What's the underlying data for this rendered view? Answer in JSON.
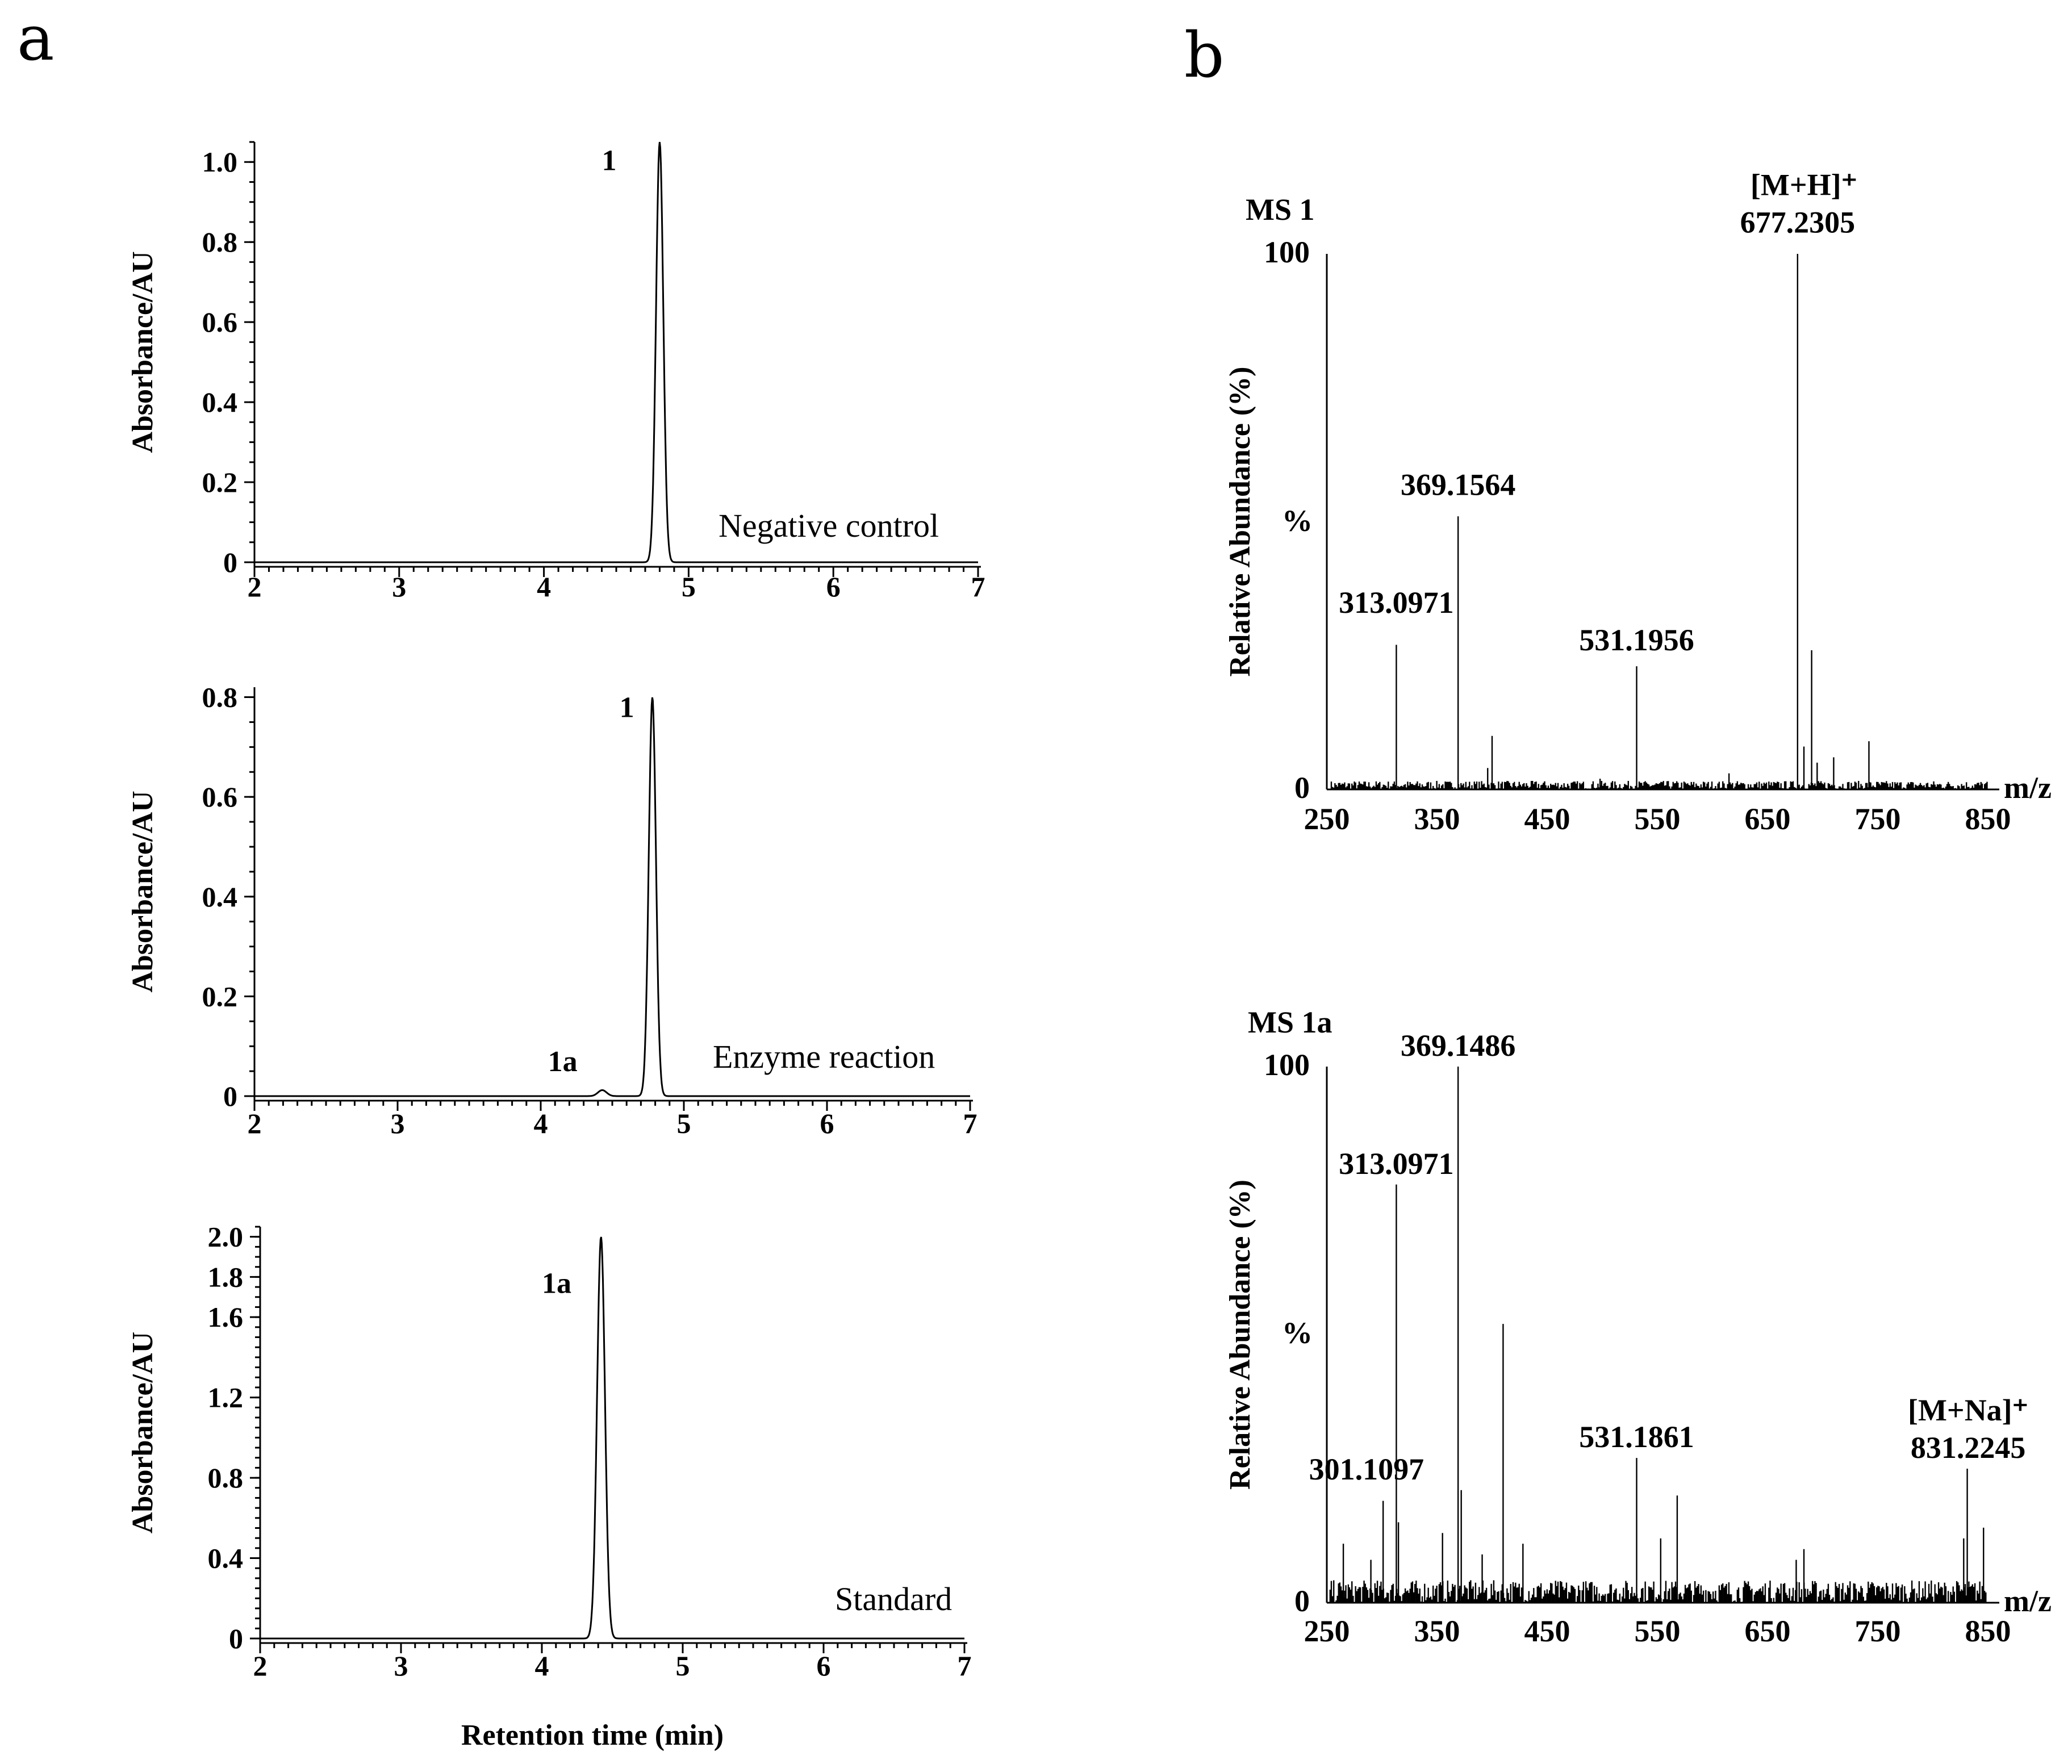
{
  "figure": {
    "panel_a": "a",
    "panel_b": "b"
  },
  "chart_data": [
    {
      "id": "hplc1",
      "type": "line",
      "ylabel": "Absorbance/AU",
      "xlabel": "",
      "condition": "Negative control",
      "xlim": [
        2,
        7
      ],
      "ylim": [
        0,
        1.05
      ],
      "xticks": [
        "2",
        "3",
        "4",
        "5",
        "6",
        "7"
      ],
      "yticks": [
        {
          "v": 0,
          "t": "0"
        },
        {
          "v": 0.2,
          "t": "0.2"
        },
        {
          "v": 0.4,
          "t": "0.4"
        },
        {
          "v": 0.6,
          "t": "0.6"
        },
        {
          "v": 0.8,
          "t": "0.8"
        },
        {
          "v": 1.0,
          "t": "1.0"
        }
      ],
      "peaks": [
        {
          "rt": 4.8,
          "h": 1.05,
          "w": 0.025,
          "label": "1",
          "lx": 4.4,
          "ly": 0.98
        }
      ]
    },
    {
      "id": "hplc2",
      "type": "line",
      "ylabel": "Absorbance/AU",
      "xlabel": "",
      "condition": "Enzyme reaction",
      "xlim": [
        2,
        7
      ],
      "ylim": [
        0,
        0.82
      ],
      "xticks": [
        "2",
        "3",
        "4",
        "5",
        "6",
        "7"
      ],
      "yticks": [
        {
          "v": 0,
          "t": "0"
        },
        {
          "v": 0.2,
          "t": "0.2"
        },
        {
          "v": 0.4,
          "t": "0.4"
        },
        {
          "v": 0.6,
          "t": "0.6"
        },
        {
          "v": 0.8,
          "t": "0.8"
        }
      ],
      "peaks": [
        {
          "rt": 4.78,
          "h": 0.8,
          "w": 0.025,
          "label": "1",
          "lx": 4.55,
          "ly": 0.76
        },
        {
          "rt": 4.43,
          "h": 0.012,
          "w": 0.03,
          "label": "1a",
          "lx": 4.05,
          "ly": 0.05
        }
      ]
    },
    {
      "id": "hplc3",
      "type": "line",
      "ylabel": "Absorbance/AU",
      "xlabel": "Retention time (min)",
      "condition": "Standard",
      "xlim": [
        2,
        7
      ],
      "ylim": [
        0,
        2.05
      ],
      "xticks": [
        "2",
        "3",
        "4",
        "5",
        "6",
        "7"
      ],
      "yticks": [
        {
          "v": 0,
          "t": "0"
        },
        {
          "v": 0.4,
          "t": "0.4"
        },
        {
          "v": 0.8,
          "t": "0.8"
        },
        {
          "v": 1.2,
          "t": "1.2"
        },
        {
          "v": 1.6,
          "t": "1.6"
        },
        {
          "v": 1.8,
          "t": "1.8"
        },
        {
          "v": 2.0,
          "t": "2.0"
        }
      ],
      "peaks": [
        {
          "rt": 4.42,
          "h": 2.0,
          "w": 0.028,
          "label": "1a",
          "lx": 4.0,
          "ly": 1.72
        }
      ]
    },
    {
      "id": "ms1",
      "type": "bar",
      "title": "MS  1",
      "ylabel": "Relative Abundance (%)",
      "xlabel": "m/z",
      "percent_label": "%",
      "xlim": [
        250,
        850
      ],
      "ylim": [
        0,
        100
      ],
      "xticks": [
        250,
        350,
        450,
        550,
        650,
        750,
        850
      ],
      "yticks": [
        "0",
        "100"
      ],
      "peaks": [
        {
          "mz": 313.0971,
          "i": 27
        },
        {
          "mz": 369.1564,
          "i": 51
        },
        {
          "mz": 400,
          "i": 10
        },
        {
          "mz": 531.1956,
          "i": 23
        },
        {
          "mz": 677.2305,
          "i": 100
        },
        {
          "mz": 683,
          "i": 8
        },
        {
          "mz": 690,
          "i": 26
        },
        {
          "mz": 695,
          "i": 5
        },
        {
          "mz": 710,
          "i": 6
        },
        {
          "mz": 742,
          "i": 9
        },
        {
          "mz": 396,
          "i": 4
        },
        {
          "mz": 615,
          "i": 3
        },
        {
          "mz": 498,
          "i": 2
        }
      ],
      "labels": [
        {
          "text": "313.0971",
          "mz": 313.0971,
          "y": 33
        },
        {
          "text": "369.1564",
          "mz": 369.1564,
          "y": 55
        },
        {
          "text": "531.1956",
          "mz": 531.1956,
          "y": 26
        },
        {
          "text": "677.2305",
          "mz": 677.2305,
          "y": 104
        },
        {
          "text": "[M+H]⁺",
          "mz": 683,
          "y": 111
        }
      ]
    },
    {
      "id": "ms2",
      "type": "bar",
      "title": "MS  1a",
      "ylabel": "Relative Abundance (%)",
      "xlabel": "m/z",
      "percent_label": "%",
      "xlim": [
        250,
        850
      ],
      "ylim": [
        0,
        100
      ],
      "xticks": [
        250,
        350,
        450,
        550,
        650,
        750,
        850
      ],
      "yticks": [
        "0",
        "100"
      ],
      "peaks": [
        {
          "mz": 369.1486,
          "i": 100
        },
        {
          "mz": 313.0971,
          "i": 78
        },
        {
          "mz": 301.1097,
          "i": 19
        },
        {
          "mz": 410,
          "i": 52
        },
        {
          "mz": 531.1861,
          "i": 27
        },
        {
          "mz": 568,
          "i": 20
        },
        {
          "mz": 831.2245,
          "i": 25
        },
        {
          "mz": 846,
          "i": 14
        },
        {
          "mz": 265,
          "i": 11
        },
        {
          "mz": 355,
          "i": 13
        },
        {
          "mz": 391,
          "i": 9
        },
        {
          "mz": 428,
          "i": 11
        },
        {
          "mz": 553,
          "i": 12
        },
        {
          "mz": 683,
          "i": 10
        },
        {
          "mz": 676,
          "i": 8
        },
        {
          "mz": 828,
          "i": 12
        },
        {
          "mz": 315,
          "i": 15
        },
        {
          "mz": 372,
          "i": 21
        },
        {
          "mz": 290,
          "i": 8
        }
      ],
      "labels": [
        {
          "text": "369.1486",
          "mz": 369.1486,
          "y": 102
        },
        {
          "text": "313.0971",
          "mz": 313.0971,
          "y": 80
        },
        {
          "text": "301.1097",
          "mz": 286,
          "y": 23
        },
        {
          "text": "531.1861",
          "mz": 531.1861,
          "y": 29
        },
        {
          "text": "[M+Na]⁺",
          "mz": 832,
          "y": 34
        },
        {
          "text": "831.2245",
          "mz": 832,
          "y": 27
        }
      ]
    }
  ]
}
